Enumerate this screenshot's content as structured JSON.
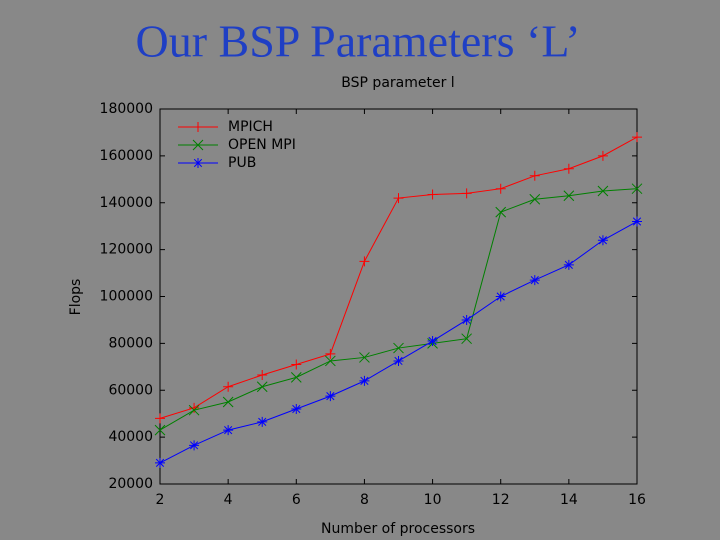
{
  "slide_title": "Our BSP Parameters ‘L’",
  "chart_data": {
    "type": "line",
    "title": "BSP parameter l",
    "x_label": "Number of processors",
    "y_label": "Flops",
    "x": [
      2,
      3,
      4,
      5,
      6,
      7,
      8,
      9,
      10,
      11,
      12,
      13,
      14,
      15,
      16
    ],
    "series": [
      {
        "name": "MPICH",
        "color": "#ff0000",
        "marker": "plus",
        "values": [
          48000,
          52500,
          61500,
          66500,
          71000,
          75500,
          115000,
          142000,
          143500,
          144000,
          146000,
          151500,
          154500,
          160000,
          168000
        ]
      },
      {
        "name": "OPEN MPI",
        "color": "#008000",
        "marker": "x",
        "values": [
          43000,
          51500,
          55000,
          61500,
          65500,
          72500,
          74000,
          78000,
          80000,
          82000,
          136000,
          141500,
          143000,
          145000,
          146000
        ]
      },
      {
        "name": "PUB",
        "color": "#0000ff",
        "marker": "star",
        "values": [
          29000,
          36500,
          43000,
          46500,
          52000,
          57500,
          64000,
          72500,
          81000,
          90000,
          100000,
          107000,
          113500,
          124000,
          132000
        ]
      }
    ],
    "xlim": [
      2,
      16
    ],
    "xticks": [
      2,
      4,
      6,
      8,
      10,
      12,
      14,
      16
    ],
    "ylim": [
      20000,
      180000
    ],
    "yticks": [
      20000,
      40000,
      60000,
      80000,
      100000,
      120000,
      140000,
      160000,
      180000
    ],
    "legend": "upper left"
  }
}
